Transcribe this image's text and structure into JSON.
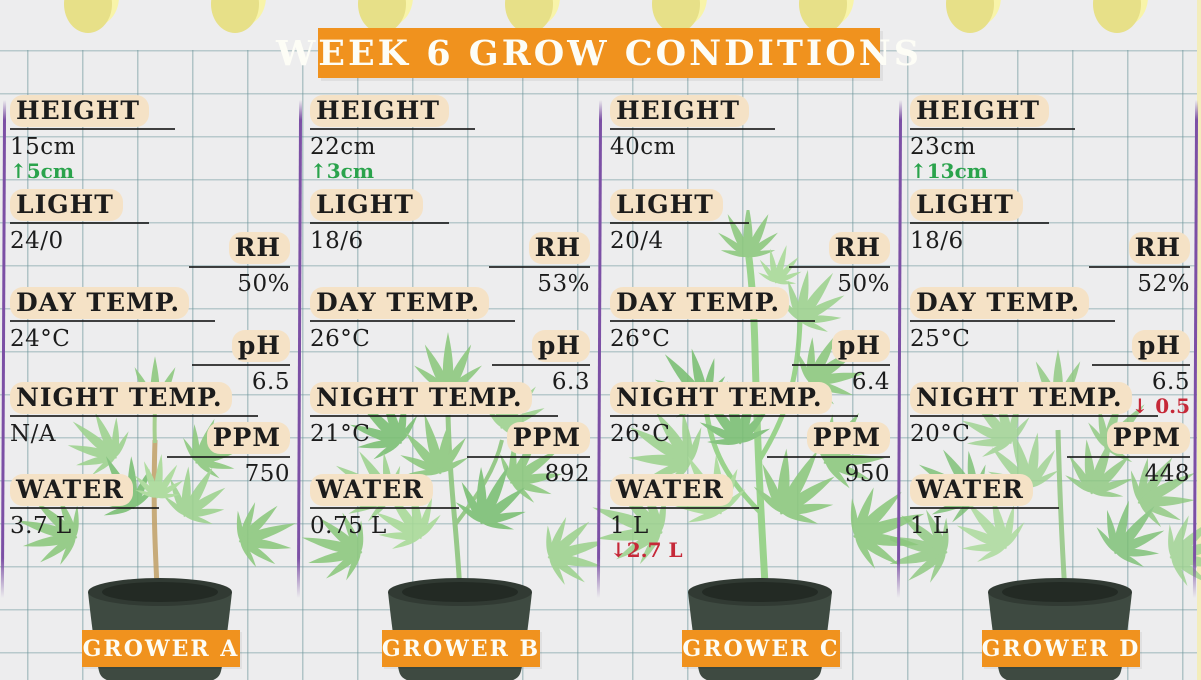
{
  "title": "WEEK 6 GROW CONDITIONS",
  "stat_labels": {
    "height": "HEIGHT",
    "light": "LIGHT",
    "day_temp": "DAY TEMP.",
    "night_temp": "NIGHT TEMP.",
    "water": "WATER",
    "rh": "RH",
    "ph": "pH",
    "ppm": "PPM"
  },
  "colors": {
    "accent_orange": "#f0921e",
    "label_highlight_peach": "#f5e2c6",
    "increase_green": "#2aa34c",
    "decrease_red": "#c62838",
    "divider_purple": "#7c50a5",
    "grid_line_teal": "#9fbfc2",
    "background_gray": "#ededee",
    "pin_yellow": "#f8f4a9",
    "leaf_green": "#8cc87d",
    "pot_dark_olive": "#3e4a41"
  },
  "growers": [
    {
      "name": "GROWER A",
      "height": "15cm",
      "height_delta": "↑5cm",
      "light": "24/0",
      "rh": "50%",
      "day_temp": "24°C",
      "ph": "6.5",
      "night_temp": "N/A",
      "ppm": "750",
      "water": "3.7 L"
    },
    {
      "name": "GROWER B",
      "height": "22cm",
      "height_delta": "↑3cm",
      "light": "18/6",
      "rh": "53%",
      "day_temp": "26°C",
      "ph": "6.3",
      "night_temp": "21°C",
      "ppm": "892",
      "water": "0.75 L"
    },
    {
      "name": "GROWER C",
      "height": "40cm",
      "light": "20/4",
      "rh": "50%",
      "day_temp": "26°C",
      "ph": "6.4",
      "night_temp": "26°C",
      "ppm": "950",
      "water": "1 L",
      "water_delta": "↓2.7 L"
    },
    {
      "name": "GROWER D",
      "height": "23cm",
      "height_delta": "↑13cm",
      "light": "18/6",
      "rh": "52%",
      "day_temp": "25°C",
      "ph": "6.5",
      "ph_delta": "↓ 0.5",
      "night_temp": "20°C",
      "ppm": "448",
      "water": "1 L"
    }
  ]
}
